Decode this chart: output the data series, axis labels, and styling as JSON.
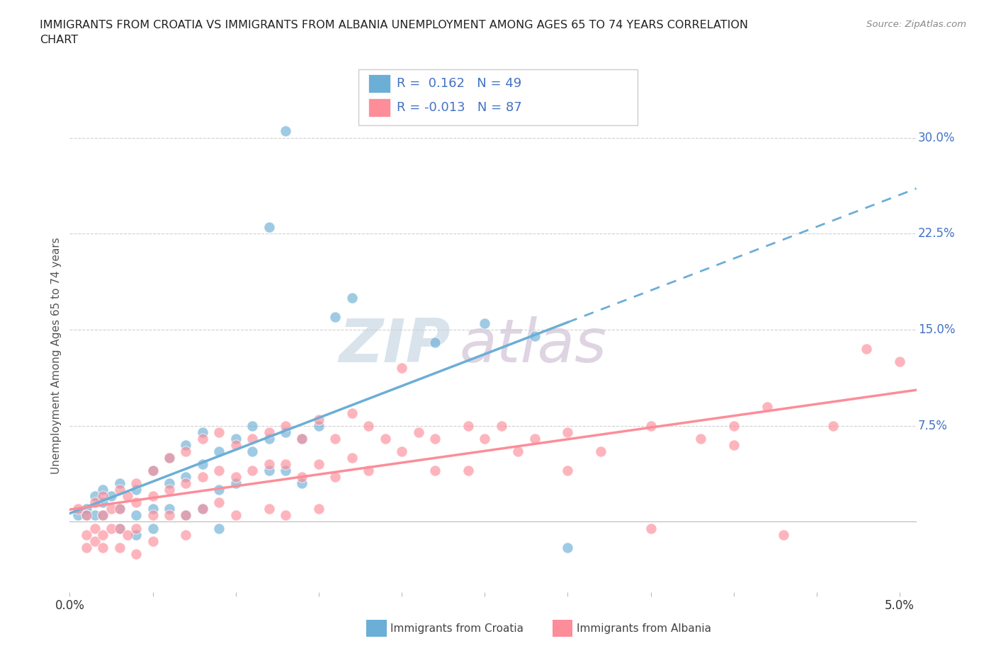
{
  "title": "IMMIGRANTS FROM CROATIA VS IMMIGRANTS FROM ALBANIA UNEMPLOYMENT AMONG AGES 65 TO 74 YEARS CORRELATION\nCHART",
  "source": "Source: ZipAtlas.com",
  "ylabel": "Unemployment Among Ages 65 to 74 years",
  "watermark_zip": "ZIP",
  "watermark_atlas": "atlas",
  "croatia_R": 0.162,
  "croatia_N": 49,
  "albania_R": -0.013,
  "albania_N": 87,
  "croatia_color": "#6baed6",
  "albania_color": "#fc8d99",
  "legend_box_color": "#cccccc",
  "text_color": "#4472c4",
  "grid_color": "#d0d0d0",
  "xlim": [
    0.0,
    0.051
  ],
  "ylim": [
    -0.055,
    0.315
  ],
  "xtick_positions": [
    0.0,
    0.005,
    0.01,
    0.015,
    0.02,
    0.025,
    0.03,
    0.035,
    0.04,
    0.045,
    0.05
  ],
  "xtick_labels": [
    "0.0%",
    "",
    "",
    "",
    "",
    "",
    "",
    "",
    "",
    "",
    "5.0%"
  ],
  "ytick_positions": [
    0.075,
    0.15,
    0.225,
    0.3
  ],
  "ytick_labels": [
    "7.5%",
    "15.0%",
    "22.5%",
    "30.0%"
  ],
  "croatia_scatter": [
    [
      0.0005,
      0.005
    ],
    [
      0.001,
      0.01
    ],
    [
      0.001,
      0.005
    ],
    [
      0.0015,
      0.02
    ],
    [
      0.0015,
      0.005
    ],
    [
      0.002,
      0.025
    ],
    [
      0.002,
      0.015
    ],
    [
      0.002,
      0.005
    ],
    [
      0.0025,
      0.02
    ],
    [
      0.003,
      0.01
    ],
    [
      0.003,
      0.03
    ],
    [
      0.003,
      -0.005
    ],
    [
      0.004,
      0.025
    ],
    [
      0.004,
      0.005
    ],
    [
      0.004,
      -0.01
    ],
    [
      0.005,
      0.04
    ],
    [
      0.005,
      0.01
    ],
    [
      0.005,
      -0.005
    ],
    [
      0.006,
      0.05
    ],
    [
      0.006,
      0.03
    ],
    [
      0.006,
      0.01
    ],
    [
      0.007,
      0.06
    ],
    [
      0.007,
      0.035
    ],
    [
      0.007,
      0.005
    ],
    [
      0.008,
      0.07
    ],
    [
      0.008,
      0.045
    ],
    [
      0.008,
      0.01
    ],
    [
      0.009,
      0.055
    ],
    [
      0.009,
      0.025
    ],
    [
      0.009,
      -0.005
    ],
    [
      0.01,
      0.065
    ],
    [
      0.01,
      0.03
    ],
    [
      0.011,
      0.075
    ],
    [
      0.011,
      0.055
    ],
    [
      0.012,
      0.065
    ],
    [
      0.012,
      0.04
    ],
    [
      0.013,
      0.07
    ],
    [
      0.013,
      0.04
    ],
    [
      0.014,
      0.065
    ],
    [
      0.014,
      0.03
    ],
    [
      0.015,
      0.075
    ],
    [
      0.016,
      0.16
    ],
    [
      0.017,
      0.175
    ],
    [
      0.012,
      0.23
    ],
    [
      0.013,
      0.305
    ],
    [
      0.022,
      0.14
    ],
    [
      0.025,
      0.155
    ],
    [
      0.028,
      0.145
    ],
    [
      0.03,
      -0.02
    ]
  ],
  "albania_scatter": [
    [
      0.0005,
      0.01
    ],
    [
      0.001,
      0.005
    ],
    [
      0.001,
      -0.01
    ],
    [
      0.001,
      -0.02
    ],
    [
      0.0015,
      0.015
    ],
    [
      0.0015,
      -0.005
    ],
    [
      0.0015,
      -0.015
    ],
    [
      0.002,
      0.02
    ],
    [
      0.002,
      0.005
    ],
    [
      0.002,
      -0.01
    ],
    [
      0.002,
      -0.02
    ],
    [
      0.0025,
      0.01
    ],
    [
      0.0025,
      -0.005
    ],
    [
      0.003,
      0.025
    ],
    [
      0.003,
      0.01
    ],
    [
      0.003,
      -0.005
    ],
    [
      0.003,
      -0.02
    ],
    [
      0.0035,
      0.02
    ],
    [
      0.0035,
      -0.01
    ],
    [
      0.004,
      0.03
    ],
    [
      0.004,
      0.015
    ],
    [
      0.004,
      -0.005
    ],
    [
      0.004,
      -0.025
    ],
    [
      0.005,
      0.04
    ],
    [
      0.005,
      0.02
    ],
    [
      0.005,
      0.005
    ],
    [
      0.005,
      -0.015
    ],
    [
      0.006,
      0.05
    ],
    [
      0.006,
      0.025
    ],
    [
      0.006,
      0.005
    ],
    [
      0.007,
      0.055
    ],
    [
      0.007,
      0.03
    ],
    [
      0.007,
      0.005
    ],
    [
      0.007,
      -0.01
    ],
    [
      0.008,
      0.065
    ],
    [
      0.008,
      0.035
    ],
    [
      0.008,
      0.01
    ],
    [
      0.009,
      0.07
    ],
    [
      0.009,
      0.04
    ],
    [
      0.009,
      0.015
    ],
    [
      0.01,
      0.06
    ],
    [
      0.01,
      0.035
    ],
    [
      0.01,
      0.005
    ],
    [
      0.011,
      0.065
    ],
    [
      0.011,
      0.04
    ],
    [
      0.012,
      0.07
    ],
    [
      0.012,
      0.045
    ],
    [
      0.012,
      0.01
    ],
    [
      0.013,
      0.075
    ],
    [
      0.013,
      0.045
    ],
    [
      0.013,
      0.005
    ],
    [
      0.014,
      0.065
    ],
    [
      0.014,
      0.035
    ],
    [
      0.015,
      0.08
    ],
    [
      0.015,
      0.045
    ],
    [
      0.015,
      0.01
    ],
    [
      0.016,
      0.065
    ],
    [
      0.016,
      0.035
    ],
    [
      0.017,
      0.085
    ],
    [
      0.017,
      0.05
    ],
    [
      0.018,
      0.075
    ],
    [
      0.018,
      0.04
    ],
    [
      0.019,
      0.065
    ],
    [
      0.02,
      0.12
    ],
    [
      0.02,
      0.055
    ],
    [
      0.021,
      0.07
    ],
    [
      0.022,
      0.065
    ],
    [
      0.022,
      0.04
    ],
    [
      0.024,
      0.075
    ],
    [
      0.024,
      0.04
    ],
    [
      0.025,
      0.065
    ],
    [
      0.026,
      0.075
    ],
    [
      0.027,
      0.055
    ],
    [
      0.028,
      0.065
    ],
    [
      0.03,
      0.07
    ],
    [
      0.03,
      0.04
    ],
    [
      0.032,
      0.055
    ],
    [
      0.035,
      0.075
    ],
    [
      0.035,
      -0.005
    ],
    [
      0.038,
      0.065
    ],
    [
      0.04,
      0.075
    ],
    [
      0.04,
      0.06
    ],
    [
      0.042,
      0.09
    ],
    [
      0.043,
      -0.01
    ],
    [
      0.046,
      0.075
    ],
    [
      0.048,
      0.135
    ],
    [
      0.05,
      0.125
    ]
  ],
  "background_color": "#ffffff"
}
